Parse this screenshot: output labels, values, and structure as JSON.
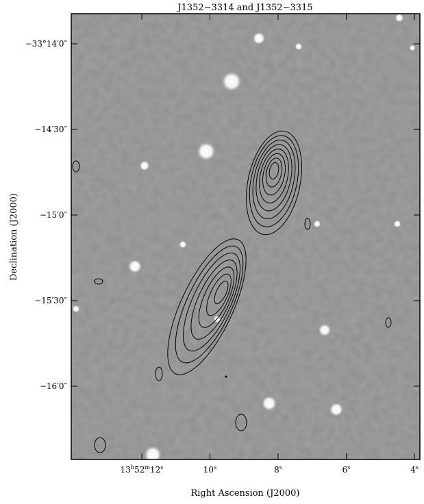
{
  "chart_data": {
    "type": "image-contour",
    "title": "J1352−3314 and J1352−3315",
    "xlabel": "Right Ascension (J2000)",
    "ylabel": "Declination (J2000)",
    "x_axis": {
      "unit": "s of RA (13h52m)",
      "range": [
        13.6,
        3.7
      ],
      "ticks": [
        {
          "value": 12,
          "label_html": "13<tspan baseline-shift='super' font-size='8'>h</tspan>52<tspan baseline-shift='super' font-size='8'>m</tspan>12<tspan baseline-shift='super' font-size='8'>s</tspan>",
          "label": "13h52m12s"
        },
        {
          "value": 10,
          "label": "10s"
        },
        {
          "value": 8,
          "label": "8s"
        },
        {
          "value": 6,
          "label": "6s"
        },
        {
          "value": 4,
          "label": "4s"
        }
      ]
    },
    "y_axis": {
      "unit": "arcsec offset from −33°14'0\"",
      "range": [
        -88,
        12
      ],
      "ticks": [
        {
          "value": 0,
          "label": "−33°14′0″"
        },
        {
          "value": -30,
          "label": "−14′30″"
        },
        {
          "value": -60,
          "label": "−15′0″"
        },
        {
          "value": -90,
          "label": "−15′30″"
        },
        {
          "value": -120,
          "label": "−16′0″"
        }
      ]
    },
    "background": "greyscale optical image",
    "contour_sources": [
      {
        "name": "J1352−3314",
        "ra_s": 8.0,
        "dec_offset": -45,
        "levels": 8
      },
      {
        "name": "J1352−3315",
        "ra_s": 9.3,
        "dec_offset": -88,
        "levels": 7
      }
    ],
    "colors": {
      "background_grey": "#8f8f8f",
      "contour": "#000000",
      "frame": "#000000"
    }
  }
}
